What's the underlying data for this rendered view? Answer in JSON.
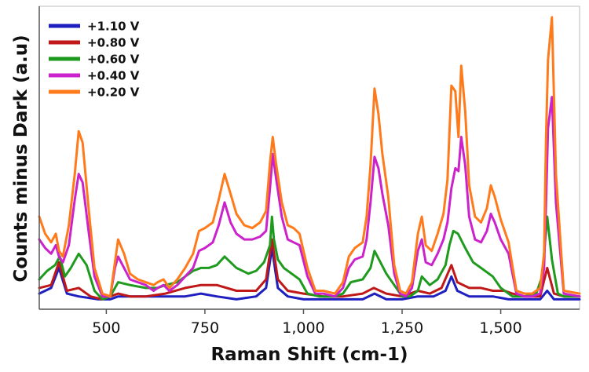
{
  "chart_data": {
    "type": "line",
    "title": "",
    "xlabel": "Raman Shift (cm-1)",
    "ylabel": "Counts minus Dark (a.u)",
    "xlim": [
      330,
      1700
    ],
    "ylim": [
      0,
      100
    ],
    "x_ticks": [
      500,
      750,
      1000,
      1250,
      1500
    ],
    "x_tick_labels": [
      "500",
      "750",
      "1,000",
      "1,250",
      "1,500"
    ],
    "y_ticks_visible": false,
    "grid": false,
    "legend_position": "top-left",
    "series": [
      {
        "name": "+1.10 V",
        "color": "#1f1fbf",
        "x": [
          330,
          360,
          380,
          400,
          430,
          480,
          510,
          530,
          560,
          600,
          650,
          700,
          740,
          780,
          830,
          880,
          905,
          920,
          935,
          960,
          1000,
          1050,
          1100,
          1150,
          1180,
          1210,
          1250,
          1290,
          1330,
          1360,
          1375,
          1390,
          1420,
          1450,
          1480,
          1520,
          1560,
          1600,
          1618,
          1635,
          1660,
          1700
        ],
        "y": [
          3,
          5,
          12,
          3,
          2,
          1,
          1,
          2,
          2,
          2,
          2,
          2,
          3,
          2,
          1,
          2,
          5,
          19,
          5,
          2,
          1,
          1,
          1,
          1,
          3,
          1,
          1,
          2,
          2,
          4,
          9,
          4,
          2,
          2,
          2,
          1,
          1,
          1,
          4,
          1,
          1,
          1
        ]
      },
      {
        "name": "+0.80 V",
        "color": "#c01818",
        "x": [
          330,
          360,
          380,
          400,
          430,
          460,
          490,
          510,
          530,
          560,
          600,
          650,
          700,
          740,
          780,
          830,
          880,
          905,
          920,
          935,
          960,
          1000,
          1050,
          1100,
          1150,
          1178,
          1210,
          1250,
          1290,
          1320,
          1350,
          1375,
          1390,
          1420,
          1450,
          1480,
          1510,
          1530,
          1560,
          1600,
          1618,
          1635,
          1660,
          1700
        ],
        "y": [
          5,
          6,
          14,
          4,
          5,
          2,
          1,
          2,
          3,
          2,
          2,
          3,
          5,
          6,
          6,
          4,
          4,
          8,
          22,
          8,
          4,
          3,
          2,
          2,
          3,
          5,
          3,
          2,
          4,
          3,
          5,
          13,
          7,
          5,
          5,
          4,
          4,
          3,
          2,
          2,
          12,
          3,
          2,
          2
        ]
      },
      {
        "name": "+0.60 V",
        "color": "#1e9a1e",
        "x": [
          330,
          350,
          370,
          382,
          395,
          410,
          430,
          450,
          470,
          490,
          510,
          530,
          560,
          600,
          630,
          650,
          680,
          700,
          720,
          740,
          760,
          780,
          800,
          830,
          860,
          880,
          900,
          915,
          920,
          925,
          935,
          950,
          970,
          990,
          1010,
          1040,
          1080,
          1100,
          1120,
          1150,
          1170,
          1180,
          1195,
          1210,
          1230,
          1250,
          1270,
          1290,
          1300,
          1320,
          1340,
          1360,
          1370,
          1380,
          1392,
          1410,
          1430,
          1450,
          1470,
          1480,
          1500,
          1530,
          1560,
          1590,
          1605,
          1618,
          1630,
          1645,
          1660,
          1700
        ],
        "y": [
          8,
          11,
          13,
          16,
          9,
          12,
          17,
          13,
          4,
          1,
          2,
          7,
          6,
          5,
          5,
          6,
          7,
          9,
          11,
          12,
          12,
          13,
          16,
          12,
          10,
          11,
          14,
          20,
          30,
          22,
          15,
          12,
          10,
          8,
          3,
          2,
          2,
          3,
          7,
          8,
          12,
          18,
          14,
          10,
          6,
          2,
          2,
          4,
          9,
          6,
          8,
          13,
          20,
          25,
          24,
          19,
          14,
          12,
          10,
          9,
          5,
          2,
          2,
          3,
          9,
          30,
          15,
          3,
          2,
          2
        ]
      },
      {
        "name": "+0.40 V",
        "color": "#cc22cc",
        "x": [
          330,
          345,
          360,
          372,
          380,
          390,
          405,
          420,
          430,
          440,
          455,
          470,
          490,
          510,
          522,
          530,
          545,
          560,
          580,
          600,
          620,
          630,
          645,
          660,
          680,
          700,
          720,
          735,
          750,
          770,
          785,
          800,
          815,
          830,
          850,
          870,
          890,
          905,
          915,
          922,
          930,
          945,
          960,
          975,
          990,
          1010,
          1030,
          1050,
          1080,
          1100,
          1115,
          1130,
          1150,
          1160,
          1170,
          1180,
          1190,
          1200,
          1215,
          1230,
          1245,
          1260,
          1275,
          1290,
          1300,
          1310,
          1325,
          1340,
          1355,
          1365,
          1375,
          1385,
          1393,
          1400,
          1410,
          1420,
          1435,
          1450,
          1465,
          1475,
          1485,
          1500,
          1520,
          1540,
          1560,
          1580,
          1600,
          1610,
          1615,
          1620,
          1630,
          1640,
          1660,
          1700
        ],
        "y": [
          22,
          19,
          17,
          20,
          16,
          14,
          20,
          36,
          45,
          42,
          25,
          9,
          2,
          2,
          12,
          16,
          12,
          8,
          7,
          6,
          4,
          5,
          6,
          4,
          6,
          9,
          12,
          18,
          19,
          21,
          27,
          35,
          28,
          24,
          22,
          22,
          23,
          25,
          40,
          52,
          44,
          30,
          22,
          21,
          20,
          9,
          3,
          3,
          2,
          5,
          12,
          15,
          16,
          22,
          35,
          51,
          47,
          38,
          27,
          10,
          3,
          2,
          5,
          18,
          22,
          14,
          13,
          17,
          22,
          28,
          40,
          47,
          46,
          58,
          48,
          30,
          22,
          21,
          25,
          31,
          28,
          22,
          17,
          3,
          2,
          2,
          3,
          12,
          35,
          61,
          72,
          35,
          3,
          2
        ]
      },
      {
        "name": "+0.20 V",
        "color": "#ff7a1a",
        "x": [
          330,
          345,
          360,
          372,
          380,
          390,
          405,
          420,
          430,
          440,
          455,
          470,
          490,
          510,
          522,
          530,
          545,
          560,
          580,
          600,
          620,
          630,
          645,
          660,
          680,
          700,
          720,
          735,
          750,
          770,
          785,
          800,
          815,
          830,
          850,
          870,
          890,
          905,
          915,
          922,
          930,
          945,
          960,
          975,
          990,
          1010,
          1030,
          1050,
          1080,
          1100,
          1115,
          1130,
          1150,
          1160,
          1170,
          1180,
          1190,
          1200,
          1215,
          1230,
          1245,
          1260,
          1275,
          1290,
          1300,
          1310,
          1325,
          1340,
          1355,
          1365,
          1375,
          1385,
          1393,
          1400,
          1410,
          1420,
          1435,
          1450,
          1465,
          1475,
          1485,
          1500,
          1520,
          1540,
          1560,
          1580,
          1600,
          1610,
          1615,
          1620,
          1630,
          1640,
          1660,
          1700
        ],
        "y": [
          30,
          24,
          21,
          24,
          18,
          16,
          27,
          45,
          60,
          56,
          33,
          12,
          3,
          2,
          14,
          22,
          17,
          10,
          8,
          7,
          6,
          7,
          8,
          5,
          8,
          12,
          17,
          25,
          26,
          28,
          36,
          45,
          38,
          31,
          27,
          26,
          28,
          32,
          49,
          58,
          49,
          35,
          27,
          26,
          24,
          12,
          4,
          4,
          3,
          7,
          16,
          19,
          21,
          30,
          48,
          75,
          66,
          52,
          37,
          13,
          4,
          3,
          7,
          24,
          30,
          20,
          18,
          24,
          31,
          43,
          76,
          74,
          58,
          83,
          67,
          41,
          30,
          28,
          33,
          41,
          37,
          29,
          21,
          4,
          3,
          3,
          5,
          17,
          58,
          85,
          100,
          45,
          4,
          3
        ]
      }
    ]
  }
}
